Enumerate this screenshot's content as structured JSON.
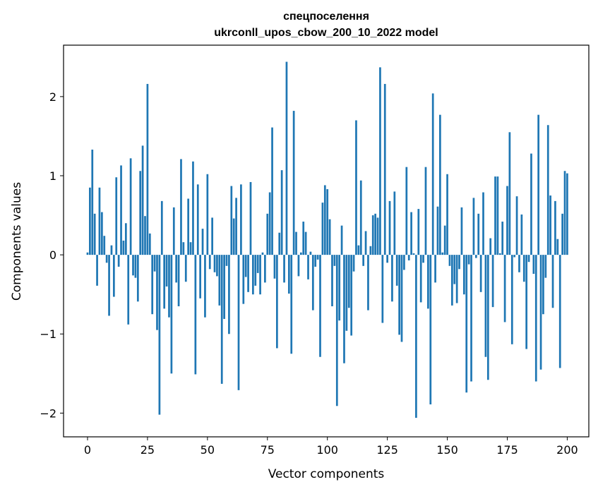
{
  "chart_data": {
    "type": "bar",
    "title_line1": "спецпоселення",
    "title_line2": "ukrconll_upos_cbow_200_10_2022 model",
    "xlabel": "Vector components",
    "ylabel": "Components values",
    "xlim": [
      -10,
      209
    ],
    "ylim": [
      -2.3,
      2.65
    ],
    "xticks": [
      0,
      25,
      50,
      75,
      100,
      125,
      150,
      175,
      200
    ],
    "xtick_labels": [
      "0",
      "25",
      "50",
      "75",
      "100",
      "125",
      "150",
      "175",
      "200"
    ],
    "yticks": [
      -2,
      -1,
      0,
      1,
      2
    ],
    "ytick_labels": [
      "−2",
      "−1",
      "0",
      "1",
      "2"
    ],
    "bar_color": "#1f77b4",
    "grid": false,
    "values": [
      0.03,
      0.85,
      1.33,
      0.52,
      -0.39,
      0.85,
      0.54,
      0.24,
      -0.1,
      -0.77,
      0.12,
      -0.53,
      0.98,
      -0.15,
      1.13,
      0.18,
      0.4,
      -0.88,
      1.22,
      -0.26,
      -0.29,
      -0.59,
      1.06,
      1.38,
      0.49,
      2.16,
      0.27,
      -0.75,
      -0.21,
      -0.95,
      -2.02,
      0.68,
      -0.68,
      -0.4,
      -0.79,
      -1.5,
      0.6,
      -0.35,
      -0.65,
      1.21,
      0.16,
      -0.34,
      0.71,
      0.16,
      1.18,
      -1.51,
      0.89,
      -0.55,
      0.33,
      -0.79,
      1.02,
      -0.18,
      0.47,
      -0.22,
      -0.27,
      -0.64,
      -1.63,
      -0.81,
      -0.14,
      -1.0,
      0.87,
      0.46,
      0.72,
      -1.71,
      0.89,
      -0.62,
      -0.28,
      -0.47,
      0.92,
      -0.5,
      -0.39,
      -0.23,
      -0.5,
      0.03,
      -0.35,
      0.52,
      0.79,
      1.61,
      -0.3,
      -1.18,
      0.28,
      1.07,
      -0.35,
      2.44,
      -0.49,
      -1.25,
      1.82,
      0.29,
      -0.27,
      0.03,
      0.42,
      0.29,
      -0.31,
      0.04,
      -0.7,
      -0.15,
      -0.06,
      -1.29,
      0.66,
      0.88,
      0.83,
      0.45,
      -0.65,
      -0.14,
      -1.91,
      -0.83,
      0.37,
      -1.37,
      -0.96,
      -0.67,
      -1.02,
      -0.21,
      1.7,
      0.12,
      0.94,
      -0.14,
      0.3,
      -0.7,
      0.11,
      0.5,
      0.52,
      0.47,
      2.37,
      -0.86,
      2.16,
      -0.1,
      0.68,
      -0.59,
      0.8,
      -0.39,
      -1.01,
      -1.1,
      -0.19,
      1.11,
      -0.07,
      0.54,
      0.02,
      -2.06,
      0.58,
      -0.6,
      -0.1,
      1.11,
      -0.68,
      -1.89,
      2.04,
      -0.35,
      0.61,
      1.77,
      0.03,
      0.37,
      1.02,
      -0.14,
      -0.64,
      -0.37,
      -0.61,
      -0.18,
      0.6,
      -0.5,
      -1.74,
      -0.12,
      -1.6,
      0.72,
      -0.04,
      0.52,
      -0.47,
      0.79,
      -1.29,
      -1.58,
      0.21,
      -0.66,
      0.99,
      0.99,
      0.02,
      0.42,
      -0.85,
      0.87,
      1.55,
      -1.13,
      -0.03,
      0.74,
      -0.22,
      0.51,
      -0.34,
      -1.19,
      -0.09,
      1.28,
      -0.24,
      -1.6,
      1.77,
      -1.45,
      -0.75,
      -0.29,
      1.64,
      0.75,
      -0.67,
      0.68,
      0.2,
      -1.43,
      0.52,
      1.06,
      1.03
    ]
  }
}
